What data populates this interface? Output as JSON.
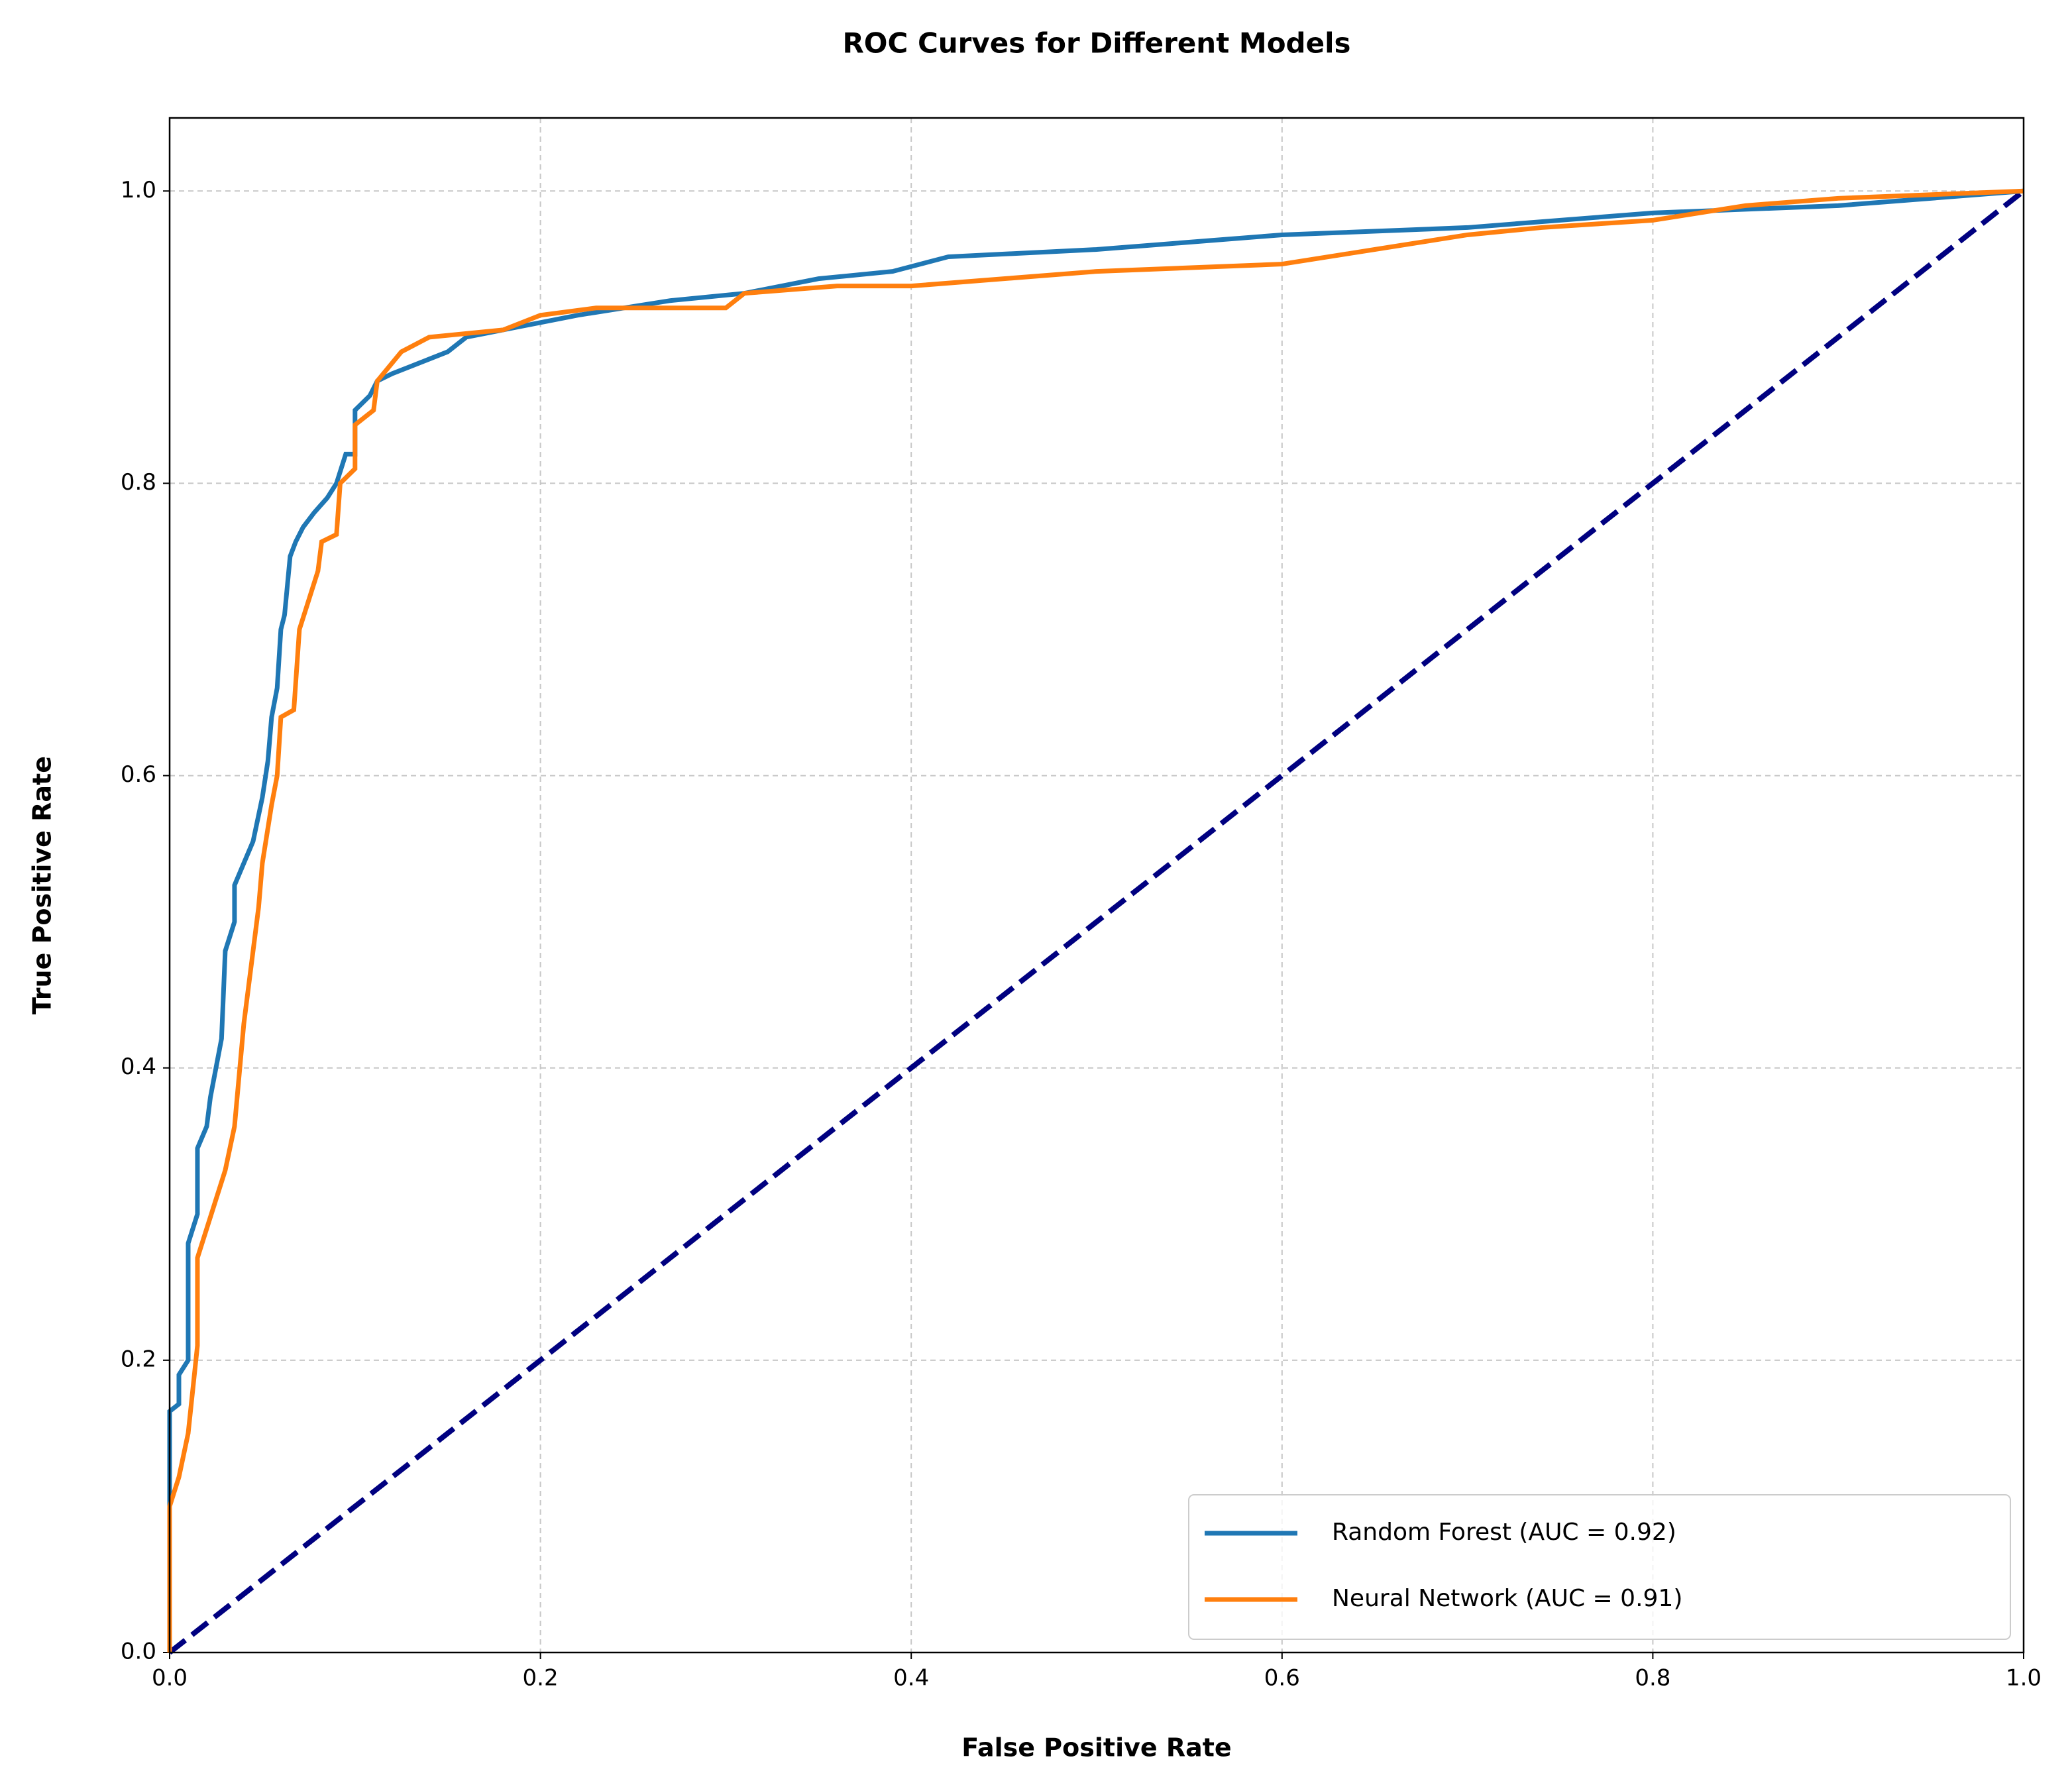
{
  "chart_data": {
    "type": "line",
    "title": "ROC Curves for Different Models",
    "x_label": "False Positive Rate",
    "y_label": "True Positive Rate",
    "xlim": [
      0,
      1
    ],
    "ylim": [
      0,
      1.05
    ],
    "xticks": [
      {
        "value": 0,
        "label": "0.0"
      },
      0.2,
      0.4,
      0.6,
      0.8,
      {
        "value": 1,
        "label": "1.0"
      }
    ],
    "yticks": [
      {
        "value": 0,
        "label": "0.0"
      },
      0.2,
      0.4,
      0.6,
      0.8,
      {
        "value": 1,
        "label": "1.0"
      }
    ],
    "grid": true,
    "legend": "lower right",
    "series": [
      {
        "name": "Random Forest (AUC = 0.92)",
        "color": "#1f77b4",
        "x": [
          0,
          0,
          0.005,
          0.005,
          0.01,
          0.01,
          0.015,
          0.015,
          0.02,
          0.022,
          0.025,
          0.028,
          0.03,
          0.035,
          0.035,
          0.04,
          0.045,
          0.05,
          0.053,
          0.055,
          0.058,
          0.06,
          0.062,
          0.065,
          0.068,
          0.072,
          0.078,
          0.085,
          0.09,
          0.095,
          0.1,
          0.1,
          0.108,
          0.112,
          0.12,
          0.13,
          0.14,
          0.15,
          0.16,
          0.2,
          0.22,
          0.27,
          0.31,
          0.35,
          0.39,
          0.42,
          0.5,
          0.6,
          0.7,
          0.8,
          0.9,
          1.0
        ],
        "values": [
          0,
          0.165,
          0.17,
          0.19,
          0.2,
          0.28,
          0.3,
          0.345,
          0.36,
          0.38,
          0.4,
          0.42,
          0.48,
          0.5,
          0.525,
          0.54,
          0.555,
          0.585,
          0.61,
          0.64,
          0.66,
          0.7,
          0.71,
          0.75,
          0.76,
          0.77,
          0.78,
          0.79,
          0.8,
          0.82,
          0.82,
          0.85,
          0.86,
          0.87,
          0.875,
          0.88,
          0.885,
          0.89,
          0.9,
          0.91,
          0.915,
          0.925,
          0.93,
          0.94,
          0.945,
          0.955,
          0.96,
          0.97,
          0.975,
          0.985,
          0.99,
          1.0
        ]
      },
      {
        "name": "Neural Network (AUC = 0.91)",
        "color": "#ff7f0e",
        "x": [
          0,
          0,
          0.005,
          0.01,
          0.015,
          0.015,
          0.02,
          0.025,
          0.03,
          0.035,
          0.04,
          0.045,
          0.048,
          0.05,
          0.055,
          0.058,
          0.06,
          0.067,
          0.07,
          0.075,
          0.08,
          0.082,
          0.09,
          0.092,
          0.1,
          0.1,
          0.11,
          0.112,
          0.125,
          0.14,
          0.18,
          0.2,
          0.23,
          0.3,
          0.31,
          0.36,
          0.4,
          0.45,
          0.5,
          0.6,
          0.65,
          0.7,
          0.74,
          0.8,
          0.85,
          0.9,
          1.0
        ],
        "values": [
          0,
          0.1,
          0.12,
          0.15,
          0.21,
          0.27,
          0.29,
          0.31,
          0.33,
          0.36,
          0.43,
          0.48,
          0.51,
          0.54,
          0.58,
          0.6,
          0.64,
          0.645,
          0.7,
          0.72,
          0.74,
          0.76,
          0.765,
          0.8,
          0.81,
          0.84,
          0.85,
          0.87,
          0.89,
          0.9,
          0.905,
          0.915,
          0.92,
          0.92,
          0.93,
          0.935,
          0.935,
          0.94,
          0.945,
          0.95,
          0.96,
          0.97,
          0.975,
          0.98,
          0.99,
          0.995,
          1.0
        ]
      }
    ],
    "reference_line": {
      "color": "#000080",
      "x": [
        0,
        1
      ],
      "values": [
        0,
        1
      ]
    }
  }
}
